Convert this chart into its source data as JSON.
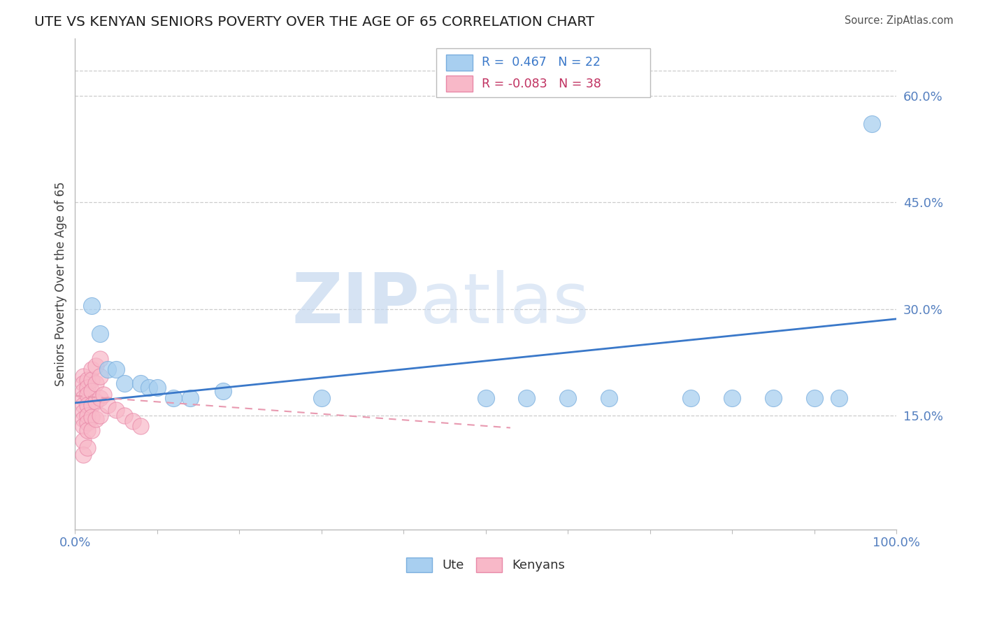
{
  "title": "UTE VS KENYAN SENIORS POVERTY OVER THE AGE OF 65 CORRELATION CHART",
  "source_text": "Source: ZipAtlas.com",
  "ylabel": "Seniors Poverty Over the Age of 65",
  "watermark_zip": "ZIP",
  "watermark_atlas": "atlas",
  "legend_r_ute": "R =  0.467",
  "legend_n_ute": "N = 22",
  "legend_r_ken": "R = -0.083",
  "legend_n_ken": "N = 38",
  "xlim": [
    0,
    1.0
  ],
  "ylim": [
    -0.01,
    0.68
  ],
  "yticks": [
    0.15,
    0.3,
    0.45,
    0.6
  ],
  "ytick_labels": [
    "15.0%",
    "30.0%",
    "45.0%",
    "60.0%"
  ],
  "bg_color": "#ffffff",
  "grid_color": "#cccccc",
  "ute_fill": "#a8cff0",
  "ute_edge": "#7aaede",
  "ken_fill": "#f8b8c8",
  "ken_edge": "#e888a8",
  "ute_line_color": "#3a78c9",
  "ken_line_color": "#e899b0",
  "tick_color": "#5580c0",
  "ute_points": [
    [
      0.02,
      0.305
    ],
    [
      0.03,
      0.265
    ],
    [
      0.04,
      0.215
    ],
    [
      0.05,
      0.215
    ],
    [
      0.06,
      0.195
    ],
    [
      0.08,
      0.195
    ],
    [
      0.09,
      0.19
    ],
    [
      0.1,
      0.19
    ],
    [
      0.12,
      0.175
    ],
    [
      0.14,
      0.175
    ],
    [
      0.18,
      0.185
    ],
    [
      0.3,
      0.175
    ],
    [
      0.5,
      0.175
    ],
    [
      0.55,
      0.175
    ],
    [
      0.6,
      0.175
    ],
    [
      0.65,
      0.175
    ],
    [
      0.75,
      0.175
    ],
    [
      0.8,
      0.175
    ],
    [
      0.85,
      0.175
    ],
    [
      0.9,
      0.175
    ],
    [
      0.93,
      0.175
    ],
    [
      0.97,
      0.56
    ]
  ],
  "ken_points": [
    [
      0.01,
      0.205
    ],
    [
      0.01,
      0.195
    ],
    [
      0.01,
      0.185
    ],
    [
      0.01,
      0.175
    ],
    [
      0.01,
      0.165
    ],
    [
      0.01,
      0.155
    ],
    [
      0.01,
      0.145
    ],
    [
      0.01,
      0.135
    ],
    [
      0.01,
      0.115
    ],
    [
      0.01,
      0.095
    ],
    [
      0.015,
      0.2
    ],
    [
      0.015,
      0.19
    ],
    [
      0.015,
      0.18
    ],
    [
      0.015,
      0.165
    ],
    [
      0.015,
      0.15
    ],
    [
      0.015,
      0.14
    ],
    [
      0.015,
      0.13
    ],
    [
      0.015,
      0.105
    ],
    [
      0.02,
      0.215
    ],
    [
      0.02,
      0.2
    ],
    [
      0.02,
      0.185
    ],
    [
      0.02,
      0.165
    ],
    [
      0.02,
      0.148
    ],
    [
      0.02,
      0.13
    ],
    [
      0.025,
      0.22
    ],
    [
      0.025,
      0.195
    ],
    [
      0.025,
      0.17
    ],
    [
      0.025,
      0.145
    ],
    [
      0.03,
      0.23
    ],
    [
      0.03,
      0.205
    ],
    [
      0.03,
      0.175
    ],
    [
      0.03,
      0.15
    ],
    [
      0.035,
      0.18
    ],
    [
      0.04,
      0.165
    ],
    [
      0.05,
      0.158
    ],
    [
      0.06,
      0.15
    ],
    [
      0.07,
      0.142
    ],
    [
      0.08,
      0.135
    ]
  ],
  "ute_trend_x": [
    0.0,
    1.0
  ],
  "ute_trend_y": [
    0.168,
    0.286
  ],
  "ken_trend_x": [
    0.0,
    0.53
  ],
  "ken_trend_y": [
    0.178,
    0.133
  ]
}
